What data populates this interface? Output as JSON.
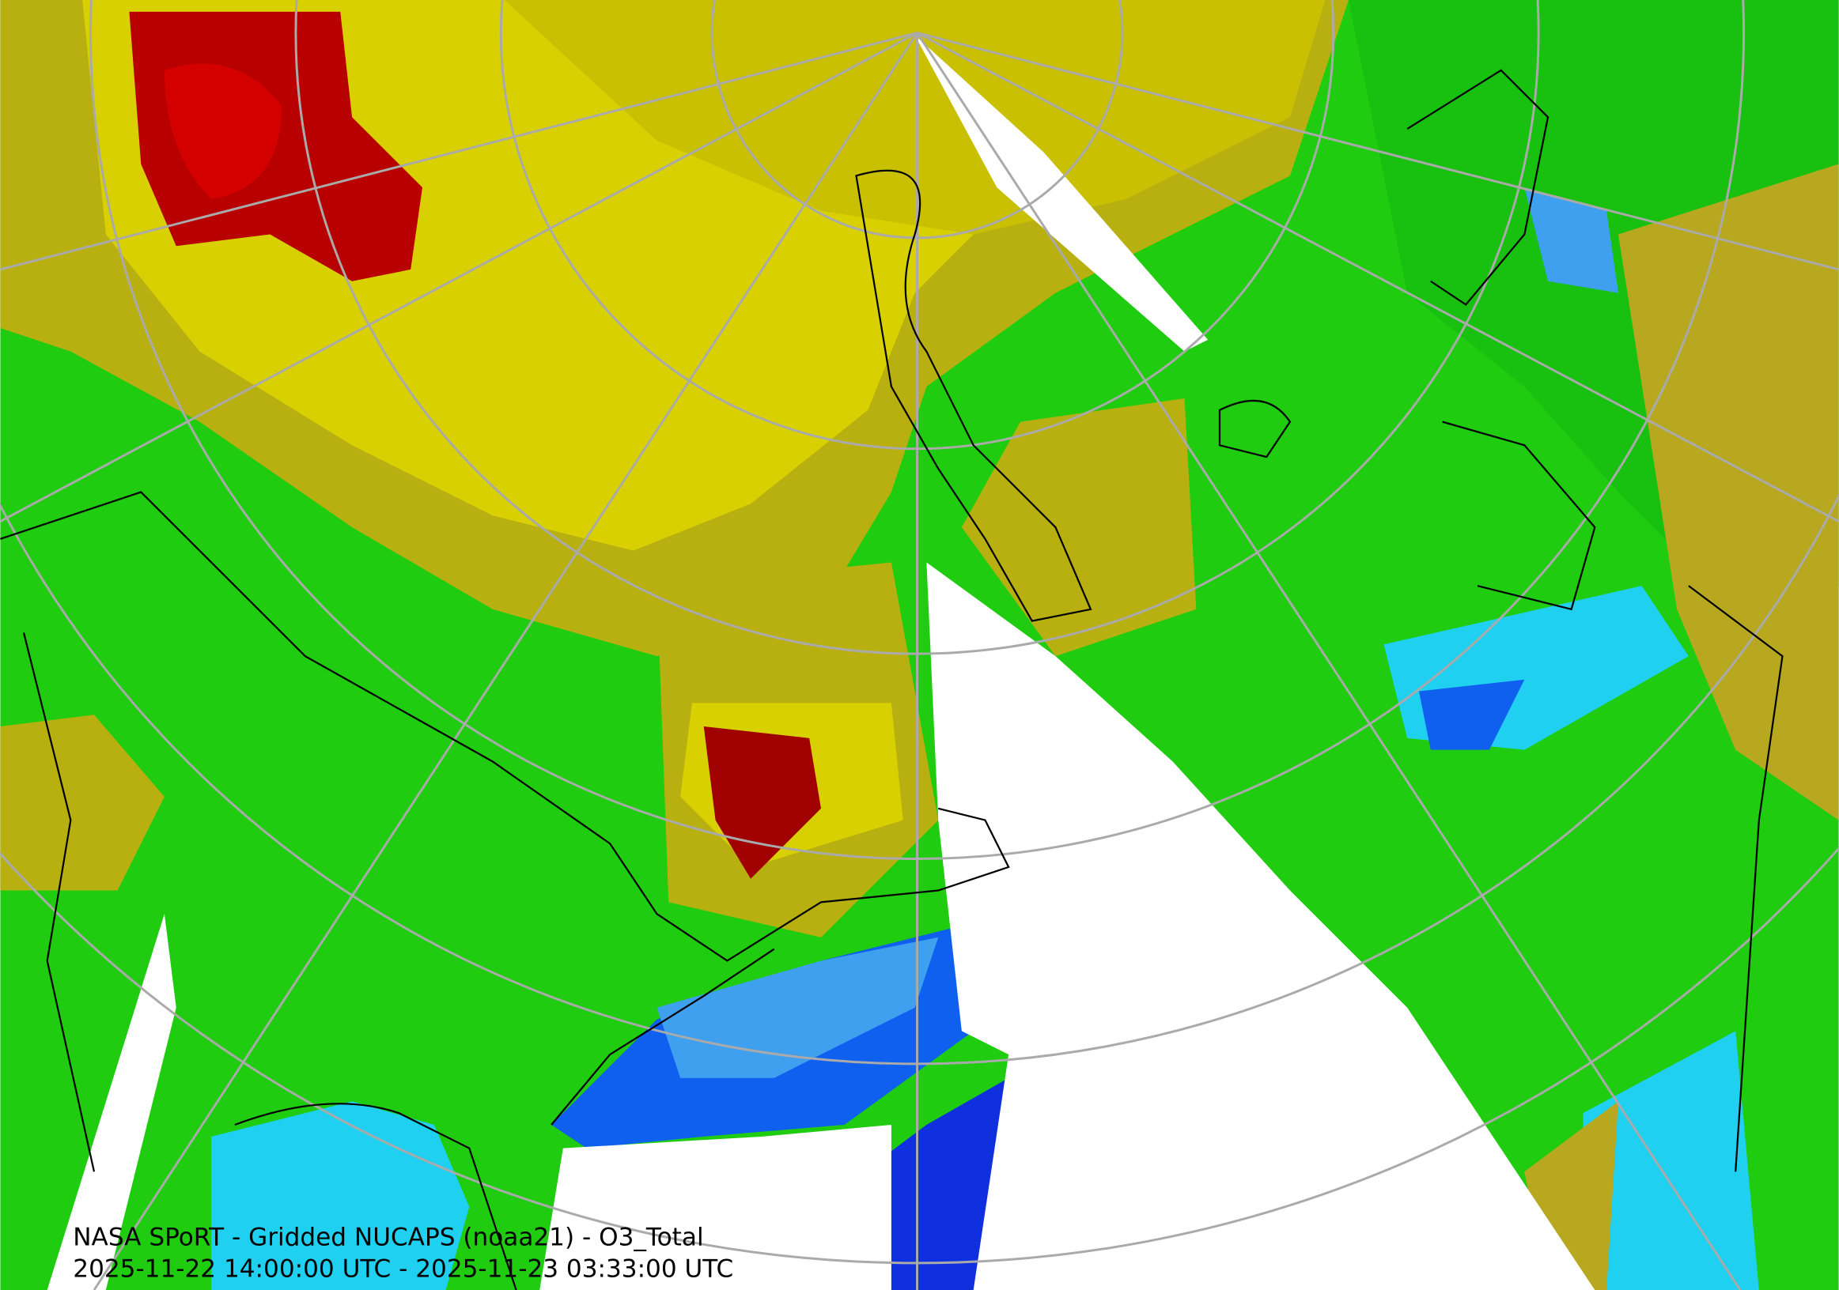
{
  "caption": {
    "line1": "NASA SPoRT - Gridded NUCAPS (noaa21) - O3_Total",
    "line2": "2025-11-22 14:00:00 UTC - 2025-11-23 03:33:00 UTC"
  }
}
